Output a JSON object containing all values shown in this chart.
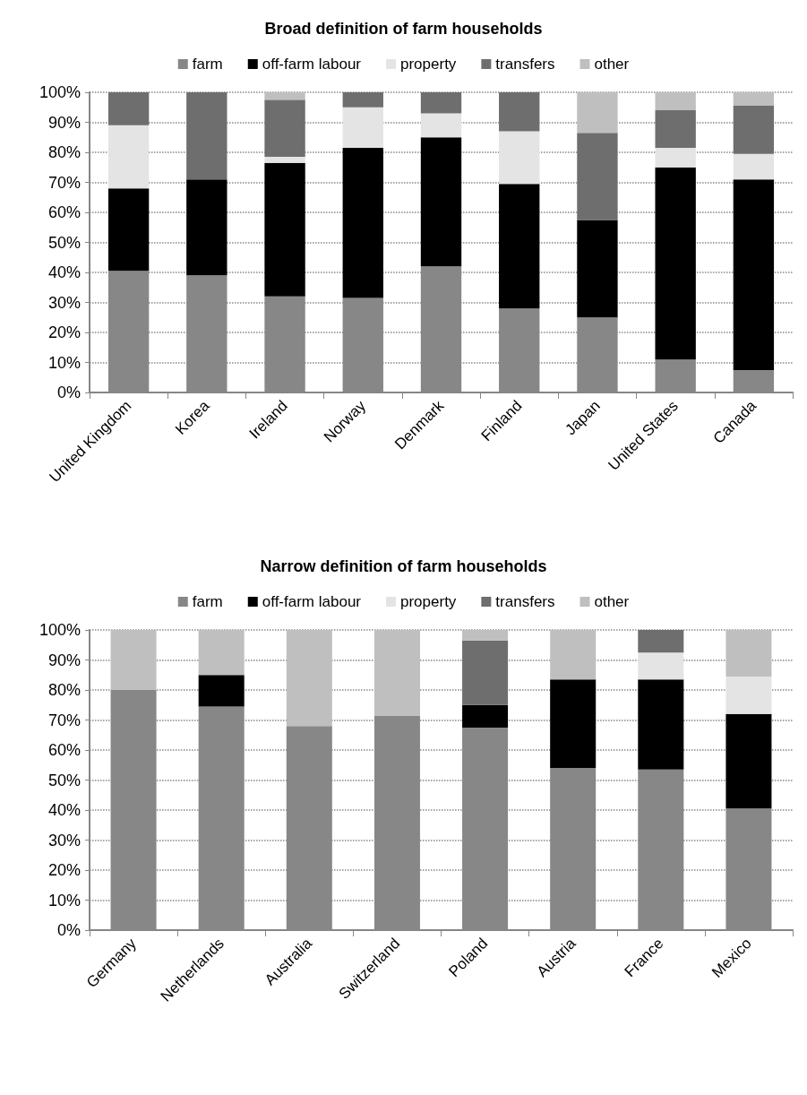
{
  "chart_data": [
    {
      "type": "bar",
      "title": "Broad definition of farm households",
      "stacked": true,
      "legend": "top",
      "grid": "y",
      "categories": [
        "United Kingdom",
        "Korea",
        "Ireland",
        "Norway",
        "Denmark",
        "Finland",
        "Japan",
        "United States",
        "Canada"
      ],
      "series": [
        {
          "name": "farm",
          "color": "#878787",
          "values": [
            40.5,
            39,
            32,
            31.5,
            42,
            28,
            25,
            11,
            7.5
          ]
        },
        {
          "name": "off-farm labour",
          "color": "#000000",
          "values": [
            27.5,
            32,
            44.5,
            50,
            43,
            41.5,
            32.5,
            64,
            63.5
          ]
        },
        {
          "name": "property",
          "color": "#e4e4e4",
          "values": [
            21,
            0,
            2,
            13.5,
            8,
            17.5,
            0,
            6.5,
            8.5
          ]
        },
        {
          "name": "transfers",
          "color": "#6e6e6e",
          "values": [
            11,
            29,
            19,
            5,
            7,
            13,
            29,
            12.5,
            16
          ]
        },
        {
          "name": "other",
          "color": "#bfbfbf",
          "values": [
            0,
            0,
            2.5,
            0,
            0,
            0,
            13.5,
            6,
            4.5
          ]
        }
      ],
      "ylim": [
        0,
        100
      ],
      "yticks": [
        {
          "value": 0,
          "label": "0%"
        },
        {
          "value": 10,
          "label": "10%"
        },
        {
          "value": 20,
          "label": "20%"
        },
        {
          "value": 30,
          "label": "30%"
        },
        {
          "value": 40,
          "label": "40%"
        },
        {
          "value": 50,
          "label": "50%"
        },
        {
          "value": 60,
          "label": "60%"
        },
        {
          "value": 70,
          "label": "70%"
        },
        {
          "value": 80,
          "label": "80%"
        },
        {
          "value": 90,
          "label": "90%"
        },
        {
          "value": 100,
          "label": "100%"
        }
      ]
    },
    {
      "type": "bar",
      "title": "Narrow definition of farm households",
      "stacked": true,
      "legend": "top",
      "grid": "y",
      "categories": [
        "Germany",
        "Netherlands",
        "Australia",
        "Switzerland",
        "Poland",
        "Austria",
        "France",
        "Mexico"
      ],
      "series": [
        {
          "name": "farm",
          "color": "#878787",
          "values": [
            80,
            74.5,
            68,
            71.5,
            67.5,
            54,
            53.5,
            40.5
          ]
        },
        {
          "name": "off-farm labour",
          "color": "#000000",
          "values": [
            0,
            10.5,
            0,
            0,
            7.5,
            29.5,
            30,
            31.5
          ]
        },
        {
          "name": "property",
          "color": "#e4e4e4",
          "values": [
            0,
            0,
            0,
            0,
            null,
            0,
            9,
            12.5
          ]
        },
        {
          "name": "transfers",
          "color": "#6e6e6e",
          "values": [
            0,
            0,
            0,
            0,
            21.5,
            0,
            7.5,
            0
          ]
        },
        {
          "name": "other",
          "color": "#bfbfbf",
          "values": [
            20,
            15,
            32,
            28.5,
            3.5,
            16.5,
            0,
            15.5
          ]
        }
      ],
      "ylim": [
        0,
        100
      ],
      "yticks": [
        {
          "value": 0,
          "label": "0%"
        },
        {
          "value": 10,
          "label": "10%"
        },
        {
          "value": 20,
          "label": "20%"
        },
        {
          "value": 30,
          "label": "30%"
        },
        {
          "value": 40,
          "label": "40%"
        },
        {
          "value": 50,
          "label": "50%"
        },
        {
          "value": 60,
          "label": "60%"
        },
        {
          "value": 70,
          "label": "70%"
        },
        {
          "value": 80,
          "label": "80%"
        },
        {
          "value": 90,
          "label": "90%"
        },
        {
          "value": 100,
          "label": "100%"
        }
      ]
    }
  ]
}
